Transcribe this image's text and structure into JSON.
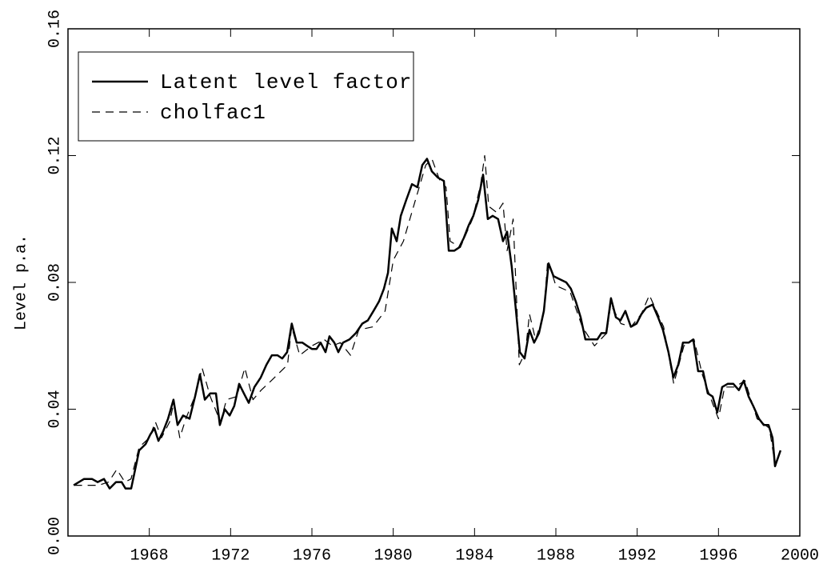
{
  "chart_data": {
    "type": "line",
    "ylabel": "Level p.a.",
    "xlim": [
      1964,
      2000
    ],
    "xticks": [
      1968,
      1972,
      1976,
      1980,
      1984,
      1988,
      1992,
      1996,
      2000
    ],
    "ylim": [
      0,
      0.16
    ],
    "yticks": [
      {
        "value": 0,
        "label": "0.00"
      },
      0.04,
      0.08,
      0.12,
      0.16
    ],
    "legend": "upper left",
    "series": [
      {
        "name": "Latent level factor",
        "color": "#000000",
        "style": "solid",
        "x": [
          1964.28,
          1964.79,
          1965.18,
          1965.46,
          1965.77,
          1966.05,
          1966.36,
          1966.64,
          1966.83,
          1967.11,
          1967.5,
          1967.82,
          1968.05,
          1968.25,
          1968.45,
          1968.68,
          1968.92,
          1969.19,
          1969.39,
          1969.66,
          1969.98,
          1970.25,
          1970.49,
          1970.73,
          1971.0,
          1971.28,
          1971.47,
          1971.71,
          1971.95,
          1972.18,
          1972.42,
          1972.65,
          1972.89,
          1973.17,
          1973.48,
          1973.76,
          1974.03,
          1974.31,
          1974.54,
          1974.78,
          1975.01,
          1975.25,
          1975.53,
          1975.76,
          1976.0,
          1976.23,
          1976.43,
          1976.67,
          1976.86,
          1977.1,
          1977.3,
          1977.53,
          1977.85,
          1978.16,
          1978.48,
          1978.75,
          1979.03,
          1979.3,
          1979.54,
          1979.74,
          1979.93,
          1980.17,
          1980.37,
          1980.64,
          1980.92,
          1981.19,
          1981.43,
          1981.66,
          1981.9,
          1982.21,
          1982.49,
          1982.73,
          1983.0,
          1983.24,
          1983.47,
          1983.71,
          1983.94,
          1984.18,
          1984.42,
          1984.65,
          1984.89,
          1985.16,
          1985.4,
          1985.6,
          1985.83,
          1986.07,
          1986.23,
          1986.46,
          1986.7,
          1986.93,
          1987.17,
          1987.41,
          1987.64,
          1987.88,
          1988.19,
          1988.51,
          1988.74,
          1988.98,
          1989.22,
          1989.45,
          1989.77,
          1990.04,
          1990.24,
          1990.48,
          1990.71,
          1990.95,
          1991.18,
          1991.42,
          1991.69,
          1991.97,
          1992.21,
          1992.44,
          1992.76,
          1993.03,
          1993.27,
          1993.54,
          1993.78,
          1994.02,
          1994.25,
          1994.53,
          1994.76,
          1995.0,
          1995.24,
          1995.47,
          1995.71,
          1995.94,
          1996.18,
          1996.45,
          1996.73,
          1997.0,
          1997.24,
          1997.48,
          1997.71,
          1997.99,
          1998.23,
          1998.46,
          1998.66,
          1998.78,
          1999.05
        ],
        "values": [
          0.016,
          0.018,
          0.018,
          0.017,
          0.018,
          0.015,
          0.017,
          0.017,
          0.015,
          0.015,
          0.027,
          0.029,
          0.032,
          0.034,
          0.03,
          0.033,
          0.037,
          0.043,
          0.035,
          0.038,
          0.037,
          0.044,
          0.051,
          0.043,
          0.045,
          0.045,
          0.035,
          0.04,
          0.038,
          0.041,
          0.048,
          0.045,
          0.042,
          0.047,
          0.05,
          0.054,
          0.057,
          0.057,
          0.056,
          0.058,
          0.067,
          0.061,
          0.061,
          0.06,
          0.059,
          0.059,
          0.061,
          0.058,
          0.063,
          0.061,
          0.058,
          0.061,
          0.062,
          0.064,
          0.067,
          0.068,
          0.071,
          0.074,
          0.078,
          0.083,
          0.097,
          0.093,
          0.101,
          0.106,
          0.111,
          0.11,
          0.117,
          0.119,
          0.115,
          0.113,
          0.112,
          0.09,
          0.09,
          0.091,
          0.094,
          0.098,
          0.101,
          0.106,
          0.114,
          0.1,
          0.101,
          0.1,
          0.093,
          0.096,
          0.085,
          0.069,
          0.058,
          0.056,
          0.065,
          0.061,
          0.064,
          0.071,
          0.086,
          0.082,
          0.081,
          0.08,
          0.078,
          0.074,
          0.069,
          0.062,
          0.062,
          0.062,
          0.064,
          0.064,
          0.075,
          0.069,
          0.068,
          0.071,
          0.066,
          0.067,
          0.07,
          0.072,
          0.073,
          0.069,
          0.065,
          0.058,
          0.05,
          0.054,
          0.061,
          0.061,
          0.062,
          0.052,
          0.052,
          0.045,
          0.044,
          0.039,
          0.047,
          0.048,
          0.048,
          0.046,
          0.049,
          0.044,
          0.041,
          0.037,
          0.035,
          0.035,
          0.031,
          0.022,
          0.027
        ]
      },
      {
        "name": "cholfac1",
        "color": "#000000",
        "style": "dashed",
        "x": [
          1964.3,
          1965.5,
          1966.0,
          1966.4,
          1966.8,
          1967.1,
          1967.5,
          1968.0,
          1968.3,
          1968.6,
          1969.0,
          1969.2,
          1969.5,
          1969.8,
          1970.3,
          1970.6,
          1971.0,
          1971.5,
          1971.8,
          1972.3,
          1972.7,
          1973.1,
          1973.5,
          1974.0,
          1974.8,
          1975.0,
          1975.4,
          1976.0,
          1976.6,
          1977.0,
          1977.4,
          1977.9,
          1978.3,
          1979.0,
          1979.6,
          1980.0,
          1980.5,
          1981.0,
          1981.6,
          1981.9,
          1982.3,
          1982.6,
          1982.8,
          1983.3,
          1983.9,
          1984.3,
          1984.5,
          1984.7,
          1985.1,
          1985.4,
          1985.6,
          1985.9,
          1986.2,
          1986.5,
          1986.7,
          1987.0,
          1987.4,
          1987.6,
          1988.0,
          1988.7,
          1989.3,
          1989.9,
          1990.5,
          1990.7,
          1991.2,
          1991.7,
          1992.2,
          1992.6,
          1993.3,
          1993.8,
          1994.3,
          1994.8,
          1995.2,
          1995.7,
          1996.0,
          1996.3,
          1996.8,
          1997.3,
          1997.9,
          1998.5,
          1998.8,
          1999.0
        ],
        "values": [
          0.016,
          0.016,
          0.017,
          0.021,
          0.017,
          0.018,
          0.028,
          0.031,
          0.036,
          0.031,
          0.036,
          0.042,
          0.031,
          0.037,
          0.045,
          0.053,
          0.044,
          0.036,
          0.043,
          0.044,
          0.053,
          0.043,
          0.046,
          0.049,
          0.054,
          0.066,
          0.057,
          0.06,
          0.062,
          0.06,
          0.061,
          0.057,
          0.065,
          0.066,
          0.071,
          0.087,
          0.093,
          0.104,
          0.117,
          0.119,
          0.112,
          0.11,
          0.093,
          0.091,
          0.1,
          0.111,
          0.12,
          0.104,
          0.102,
          0.105,
          0.09,
          0.1,
          0.054,
          0.058,
          0.07,
          0.062,
          0.07,
          0.087,
          0.079,
          0.077,
          0.066,
          0.06,
          0.064,
          0.073,
          0.067,
          0.066,
          0.07,
          0.076,
          0.066,
          0.048,
          0.06,
          0.062,
          0.051,
          0.042,
          0.037,
          0.047,
          0.047,
          0.049,
          0.037,
          0.034,
          0.022,
          0.026
        ]
      }
    ]
  }
}
